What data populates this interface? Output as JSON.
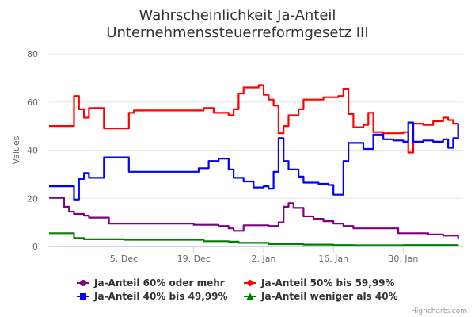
{
  "chart_data": {
    "type": "line",
    "title_lines": [
      "Wahrscheinlichkeit Ja-Anteil",
      "Unternehmenssteuerreformgesetz III"
    ],
    "xlabel": "",
    "ylabel": "Values",
    "ylim": [
      0,
      80
    ],
    "yticks": [
      0,
      20,
      40,
      60,
      80
    ],
    "xlim": [
      "2016-11-20",
      "2017-02-11"
    ],
    "xticks": [
      {
        "date": "2016-12-05",
        "label": "5. Dec"
      },
      {
        "date": "2016-12-19",
        "label": "19. Dec"
      },
      {
        "date": "2017-01-02",
        "label": "2. Jan"
      },
      {
        "date": "2017-01-16",
        "label": "16. Jan"
      },
      {
        "date": "2017-01-30",
        "label": "30. Jan"
      }
    ],
    "grid": "horizontal",
    "legend_position": "bottom",
    "series": [
      {
        "name": "Ja-Anteil 60% oder mehr",
        "color": "#800080",
        "marker": "circle",
        "points": [
          [
            "2016-11-20",
            20.2
          ],
          [
            "2016-11-22",
            20.2
          ],
          [
            "2016-11-23",
            16.5
          ],
          [
            "2016-11-24",
            14.5
          ],
          [
            "2016-11-25",
            13.5
          ],
          [
            "2016-11-27",
            12.8
          ],
          [
            "2016-11-28",
            12.0
          ],
          [
            "2016-11-30",
            12.0
          ],
          [
            "2016-12-01",
            12.0
          ],
          [
            "2016-12-02",
            9.5
          ],
          [
            "2016-12-10",
            9.5
          ],
          [
            "2016-12-18",
            9.5
          ],
          [
            "2016-12-19",
            9.0
          ],
          [
            "2016-12-24",
            8.5
          ],
          [
            "2016-12-26",
            7.5
          ],
          [
            "2016-12-27",
            6.5
          ],
          [
            "2016-12-28",
            6.5
          ],
          [
            "2016-12-29",
            8.8
          ],
          [
            "2017-01-01",
            8.8
          ],
          [
            "2017-01-03",
            8.5
          ],
          [
            "2017-01-05",
            10.0
          ],
          [
            "2017-01-06",
            16.5
          ],
          [
            "2017-01-07",
            18.0
          ],
          [
            "2017-01-08",
            16.0
          ],
          [
            "2017-01-10",
            12.5
          ],
          [
            "2017-01-12",
            11.5
          ],
          [
            "2017-01-14",
            10.5
          ],
          [
            "2017-01-16",
            9.5
          ],
          [
            "2017-01-18",
            8.5
          ],
          [
            "2017-01-20",
            7.5
          ],
          [
            "2017-01-24",
            7.5
          ],
          [
            "2017-01-27",
            7.5
          ],
          [
            "2017-01-29",
            5.5
          ],
          [
            "2017-02-01",
            5.5
          ],
          [
            "2017-02-04",
            5.0
          ],
          [
            "2017-02-07",
            4.5
          ],
          [
            "2017-02-10",
            3.0
          ]
        ]
      },
      {
        "name": "Ja-Anteil 50% bis 59,99%",
        "color": "#ff0000",
        "marker": "diamond",
        "points": [
          [
            "2016-11-20",
            50.0
          ],
          [
            "2016-11-24",
            50.0
          ],
          [
            "2016-11-25",
            62.5
          ],
          [
            "2016-11-26",
            57.0
          ],
          [
            "2016-11-27",
            53.5
          ],
          [
            "2016-11-28",
            57.5
          ],
          [
            "2016-11-30",
            57.5
          ],
          [
            "2016-12-01",
            49.0
          ],
          [
            "2016-12-05",
            49.0
          ],
          [
            "2016-12-06",
            55.5
          ],
          [
            "2016-12-07",
            56.5
          ],
          [
            "2016-12-15",
            56.5
          ],
          [
            "2016-12-21",
            57.5
          ],
          [
            "2016-12-23",
            55.5
          ],
          [
            "2016-12-26",
            54.5
          ],
          [
            "2016-12-27",
            57.0
          ],
          [
            "2016-12-28",
            63.5
          ],
          [
            "2016-12-29",
            66.0
          ],
          [
            "2017-01-01",
            67.0
          ],
          [
            "2017-01-02",
            63.0
          ],
          [
            "2017-01-03",
            61.0
          ],
          [
            "2017-01-04",
            58.5
          ],
          [
            "2017-01-05",
            47.0
          ],
          [
            "2017-01-06",
            50.0
          ],
          [
            "2017-01-07",
            54.5
          ],
          [
            "2017-01-09",
            57.0
          ],
          [
            "2017-01-10",
            61.0
          ],
          [
            "2017-01-12",
            61.0
          ],
          [
            "2017-01-14",
            62.0
          ],
          [
            "2017-01-17",
            62.5
          ],
          [
            "2017-01-18",
            65.5
          ],
          [
            "2017-01-19",
            55.0
          ],
          [
            "2017-01-20",
            49.5
          ],
          [
            "2017-01-22",
            50.5
          ],
          [
            "2017-01-23",
            55.5
          ],
          [
            "2017-01-24",
            47.5
          ],
          [
            "2017-01-26",
            47.0
          ],
          [
            "2017-01-28",
            47.0
          ],
          [
            "2017-01-30",
            47.5
          ],
          [
            "2017-01-31",
            39.0
          ],
          [
            "2017-02-01",
            51.0
          ],
          [
            "2017-02-03",
            50.5
          ],
          [
            "2017-02-05",
            52.0
          ],
          [
            "2017-02-07",
            53.5
          ],
          [
            "2017-02-08",
            52.5
          ],
          [
            "2017-02-09",
            51.0
          ],
          [
            "2017-02-10",
            46.0
          ]
        ]
      },
      {
        "name": "Ja-Anteil 40% bis 49,99%",
        "color": "#0000ff",
        "marker": "square",
        "points": [
          [
            "2016-11-20",
            25.0
          ],
          [
            "2016-11-24",
            25.0
          ],
          [
            "2016-11-25",
            19.5
          ],
          [
            "2016-11-26",
            28.0
          ],
          [
            "2016-11-27",
            30.5
          ],
          [
            "2016-11-28",
            28.5
          ],
          [
            "2016-11-30",
            28.5
          ],
          [
            "2016-12-01",
            37.0
          ],
          [
            "2016-12-05",
            37.0
          ],
          [
            "2016-12-06",
            31.0
          ],
          [
            "2016-12-10",
            31.0
          ],
          [
            "2016-12-15",
            31.0
          ],
          [
            "2016-12-20",
            32.5
          ],
          [
            "2016-12-22",
            35.5
          ],
          [
            "2016-12-24",
            36.5
          ],
          [
            "2016-12-26",
            32.0
          ],
          [
            "2016-12-27",
            28.5
          ],
          [
            "2016-12-29",
            27.0
          ],
          [
            "2016-12-31",
            24.5
          ],
          [
            "2017-01-02",
            25.0
          ],
          [
            "2017-01-03",
            24.0
          ],
          [
            "2017-01-04",
            31.0
          ],
          [
            "2017-01-05",
            45.0
          ],
          [
            "2017-01-06",
            35.5
          ],
          [
            "2017-01-07",
            32.0
          ],
          [
            "2017-01-09",
            29.0
          ],
          [
            "2017-01-10",
            26.5
          ],
          [
            "2017-01-13",
            26.0
          ],
          [
            "2017-01-15",
            25.5
          ],
          [
            "2017-01-16",
            21.5
          ],
          [
            "2017-01-17",
            21.5
          ],
          [
            "2017-01-18",
            35.5
          ],
          [
            "2017-01-19",
            43.0
          ],
          [
            "2017-01-22",
            40.5
          ],
          [
            "2017-01-24",
            46.5
          ],
          [
            "2017-01-26",
            44.5
          ],
          [
            "2017-01-28",
            44.0
          ],
          [
            "2017-01-30",
            43.5
          ],
          [
            "2017-01-31",
            51.5
          ],
          [
            "2017-02-01",
            43.5
          ],
          [
            "2017-02-03",
            44.0
          ],
          [
            "2017-02-05",
            43.5
          ],
          [
            "2017-02-07",
            44.5
          ],
          [
            "2017-02-08",
            41.0
          ],
          [
            "2017-02-09",
            45.0
          ],
          [
            "2017-02-10",
            51.0
          ]
        ]
      },
      {
        "name": "Ja-Anteil weniger als 40%",
        "color": "#008000",
        "marker": "triangle",
        "points": [
          [
            "2016-11-20",
            5.5
          ],
          [
            "2016-11-24",
            5.5
          ],
          [
            "2016-11-25",
            3.5
          ],
          [
            "2016-11-27",
            3.0
          ],
          [
            "2016-12-05",
            2.8
          ],
          [
            "2016-12-15",
            2.8
          ],
          [
            "2016-12-18",
            2.8
          ],
          [
            "2016-12-21",
            2.2
          ],
          [
            "2016-12-26",
            2.0
          ],
          [
            "2016-12-28",
            1.5
          ],
          [
            "2016-12-31",
            1.5
          ],
          [
            "2017-01-03",
            1.0
          ],
          [
            "2017-01-10",
            0.8
          ],
          [
            "2017-01-16",
            0.6
          ],
          [
            "2017-01-20",
            0.5
          ],
          [
            "2017-01-25",
            0.5
          ],
          [
            "2017-01-30",
            0.6
          ],
          [
            "2017-02-05",
            0.6
          ],
          [
            "2017-02-10",
            0.5
          ]
        ]
      }
    ],
    "credits": "Highcharts.com"
  }
}
